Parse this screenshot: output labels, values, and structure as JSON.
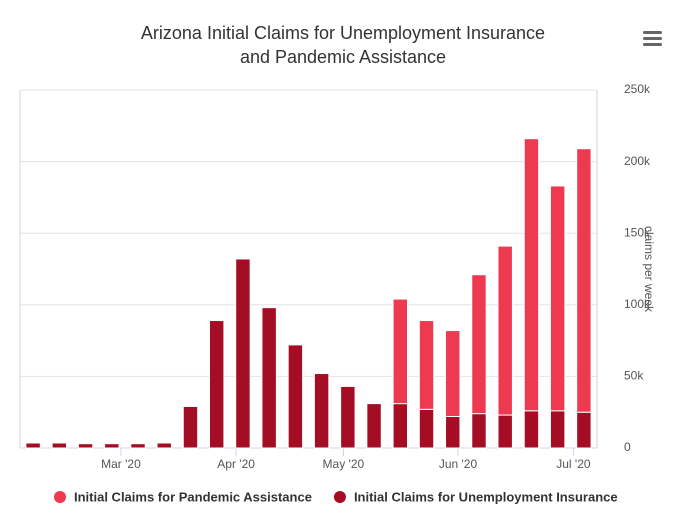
{
  "chart_data": {
    "type": "stacked-bar",
    "title": "Arizona Initial Claims for Unemployment Insurance",
    "subtitle": "and Pandemic Assistance",
    "y_axis_label": "claims per week",
    "series": [
      {
        "name": "Initial Claims for Pandemic Assistance",
        "color": "#ee3a50",
        "values": [
          null,
          null,
          null,
          null,
          null,
          null,
          null,
          null,
          null,
          null,
          null,
          null,
          null,
          null,
          73000,
          62000,
          60000,
          97000,
          118000,
          190000,
          157000,
          184000
        ]
      },
      {
        "name": "Initial Claims for Unemployment Insurance",
        "color": "#a50d24",
        "values": [
          3500,
          3500,
          3000,
          3000,
          3000,
          3500,
          29000,
          89000,
          132000,
          98000,
          72000,
          52000,
          43000,
          31000,
          31000,
          27000,
          22000,
          24000,
          23000,
          26000,
          26000,
          25000
        ]
      }
    ],
    "xlim": [
      -0.5,
      21.5
    ],
    "xticks": [
      {
        "value": 3.35,
        "label": "Mar '20"
      },
      {
        "value": 7.74,
        "label": "Apr '20"
      },
      {
        "value": 11.83,
        "label": "May '20"
      },
      {
        "value": 16.2,
        "label": "Jun '20"
      },
      {
        "value": 20.6,
        "label": "Jul '20"
      }
    ],
    "ylim": [
      0,
      250000
    ],
    "yticks": [
      0,
      {
        "value": 50000,
        "label": "50k"
      },
      {
        "value": 100000,
        "label": "100k"
      },
      {
        "value": 150000,
        "label": "150k"
      },
      {
        "value": 200000,
        "label": "200k"
      },
      {
        "value": 250000,
        "label": "250k"
      }
    ],
    "grid": true
  }
}
